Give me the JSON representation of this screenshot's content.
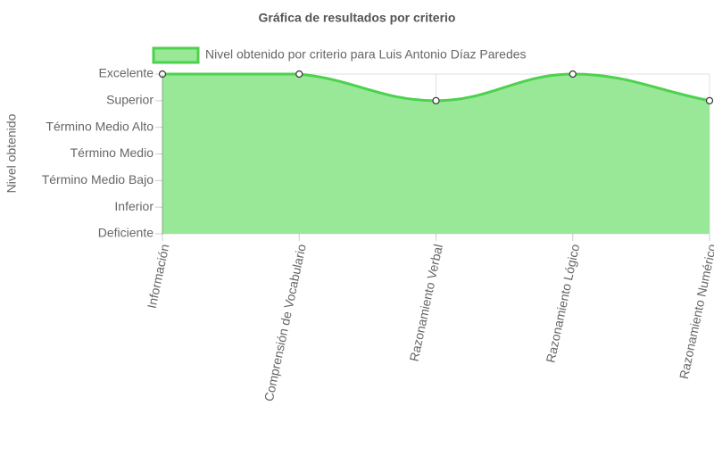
{
  "chart_data": {
    "type": "line",
    "title": "Gráfica de resultados por criterio",
    "y_label": "Nivel obtenido",
    "categories": [
      "Información",
      "Comprensión de Vocabulario",
      "Razonamiento Verbal",
      "Razonamiento Lógico",
      "Razonamiento Numérico"
    ],
    "series": [
      {
        "name": "Nivel obtenido por criterio para Luis Antonio Díaz Paredes",
        "color": "#4cd24c",
        "fill": "#98e898",
        "values": [
          6,
          6,
          5,
          6,
          5
        ]
      }
    ],
    "ylim": [
      0,
      6
    ],
    "yticks": [
      {
        "value": 0,
        "label": "Deficiente"
      },
      {
        "value": 1,
        "label": "Inferior"
      },
      {
        "value": 2,
        "label": "Término Medio Bajo"
      },
      {
        "value": 3,
        "label": "Término Medio"
      },
      {
        "value": 4,
        "label": "Término Medio Alto"
      },
      {
        "value": 5,
        "label": "Superior"
      },
      {
        "value": 6,
        "label": "Excelente"
      }
    ],
    "grid": true
  }
}
